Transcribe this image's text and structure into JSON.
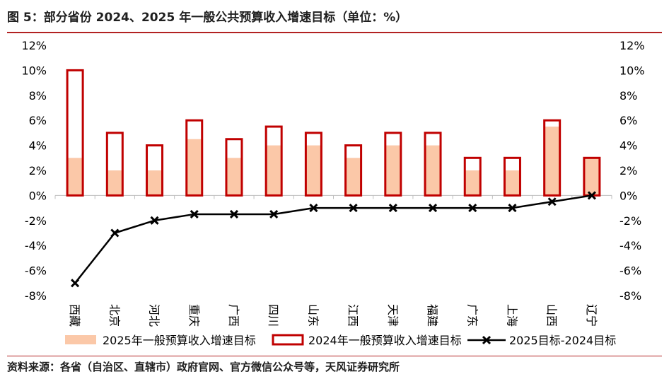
{
  "figure": {
    "title": "图 5：部分省份 2024、2025 年一般公共预算收入增速目标（单位：%）",
    "source": "资料来源：各省（自治区、直辖市）政府官网、官方微信公众号等，天风证券研究所"
  },
  "chart_data": {
    "type": "bar",
    "categories": [
      "西藏",
      "北京",
      "河北",
      "重庆",
      "广西",
      "四川",
      "山东",
      "江西",
      "天津",
      "福建",
      "广东",
      "上海",
      "山西",
      "辽宁"
    ],
    "series": [
      {
        "name": "2025年一般预算收入增速目标",
        "type": "bar",
        "color": "#fbc8a8",
        "values": [
          3,
          2,
          2,
          4.5,
          3,
          4,
          4,
          3,
          4,
          4,
          2,
          2,
          5.5,
          3
        ]
      },
      {
        "name": "2024年一般预算收入增速目标",
        "type": "bar-outline",
        "color": "#c00000",
        "values": [
          10,
          5,
          4,
          6,
          4.5,
          5.5,
          5,
          4,
          5,
          5,
          3,
          3,
          6,
          3
        ]
      },
      {
        "name": "2025目标-2024目标",
        "type": "line",
        "color": "#000000",
        "values": [
          -7,
          -3,
          -2,
          -1.5,
          -1.5,
          -1.5,
          -1,
          -1,
          -1,
          -1,
          -1,
          -1,
          -0.5,
          0
        ]
      }
    ],
    "ylim": [
      -8,
      12
    ],
    "yticks": [
      "12%",
      "10%",
      "8%",
      "6%",
      "4%",
      "2%",
      "0%",
      "-2%",
      "-4%",
      "-6%",
      "-8%"
    ],
    "ytick_values": [
      12,
      10,
      8,
      6,
      4,
      2,
      0,
      -2,
      -4,
      -6,
      -8
    ],
    "legend": "bottom",
    "grid": false
  }
}
